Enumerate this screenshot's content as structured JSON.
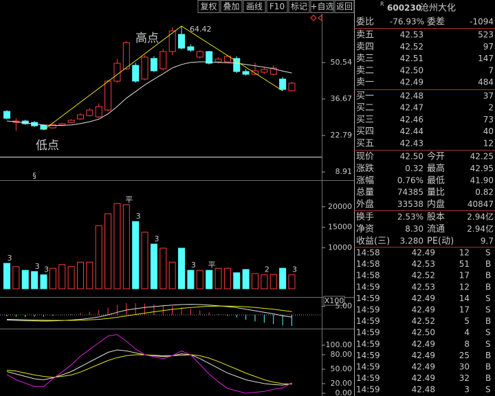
{
  "toolbar": {
    "buttons": [
      "复权",
      "叠加",
      "画线",
      "F10",
      "标记",
      "+自选",
      "返回"
    ]
  },
  "stock": {
    "flag": "R",
    "code": "600230",
    "name": "沧州大化"
  },
  "quote": {
    "ratio_label": "委比",
    "ratio": "-76.93%",
    "diff_label": "委差",
    "diff": "-1094",
    "color": "#30e030"
  },
  "order_book": {
    "price_color": "#ff4848",
    "volume_color": "#ffff00",
    "rows": [
      {
        "label": "卖五",
        "price": "42.53",
        "volume": "523"
      },
      {
        "label": "卖四",
        "price": "42.52",
        "volume": "97"
      },
      {
        "label": "卖三",
        "price": "42.51",
        "volume": "147"
      },
      {
        "label": "卖二",
        "price": "42.50",
        "volume": "7"
      },
      {
        "label": "卖一",
        "price": "42.49",
        "volume": "484"
      },
      {
        "label": "买一",
        "price": "42.48",
        "volume": "37"
      },
      {
        "label": "买二",
        "price": "42.47",
        "volume": "2"
      },
      {
        "label": "买三",
        "price": "42.46",
        "volume": "73"
      },
      {
        "label": "买四",
        "price": "42.44",
        "volume": "40"
      },
      {
        "label": "买五",
        "price": "42.43",
        "volume": "12"
      }
    ]
  },
  "stats": [
    {
      "label": "现价",
      "value": "42.50",
      "color": "#ff4848"
    },
    {
      "label": "今开",
      "value": "42.25",
      "color": "#ff4848"
    },
    {
      "label": "涨跌",
      "value": "0.32",
      "color": "#ff4848"
    },
    {
      "label": "最高",
      "value": "42.95",
      "color": "#ff4848"
    },
    {
      "label": "涨幅",
      "value": "0.76%",
      "color": "#ff4848"
    },
    {
      "label": "最低",
      "value": "41.90",
      "color": "#ff4848"
    },
    {
      "label": "总量",
      "value": "74385",
      "color": "#ffff00"
    },
    {
      "label": "量比",
      "value": "0.82",
      "color": "#ffff00"
    },
    {
      "label": "外盘",
      "value": "33538",
      "color": "#ff4848"
    },
    {
      "label": "内盘",
      "value": "40847",
      "color": "#30e030"
    },
    {
      "label": "换手",
      "value": "2.53%",
      "color": "#e8e8e8"
    },
    {
      "label": "股本",
      "value": "2.94亿",
      "color": "#e8e8e8"
    },
    {
      "label": "净资",
      "value": "8.30",
      "color": "#e8e8e8"
    },
    {
      "label": "流通",
      "value": "2.94亿",
      "color": "#e8e8e8"
    },
    {
      "label": "收益(三)",
      "value": "3.280",
      "color": "#e8e8e8"
    },
    {
      "label": "PE(动)",
      "value": "9.7",
      "color": "#e8e8e8"
    }
  ],
  "trades": {
    "price_color": "#ff4848",
    "volume_color": "#ffff00",
    "side_colors": {
      "B": "#ff4848",
      "S": "#30e030"
    },
    "rows": [
      {
        "time": "14:58",
        "price": "42.49",
        "volume": "12",
        "side": "S"
      },
      {
        "time": "14:58",
        "price": "42.53",
        "volume": "51",
        "side": "B"
      },
      {
        "time": "14:58",
        "price": "42.52",
        "volume": "17",
        "side": "B"
      },
      {
        "time": "14:59",
        "price": "42.53",
        "volume": "12",
        "side": "B"
      },
      {
        "time": "14:59",
        "price": "42.49",
        "volume": "14",
        "side": "S"
      },
      {
        "time": "14:59",
        "price": "42.49",
        "volume": "17",
        "side": "S"
      },
      {
        "time": "14:59",
        "price": "42.52",
        "volume": "5",
        "side": "B"
      },
      {
        "time": "14:59",
        "price": "42.50",
        "volume": "4",
        "side": "S"
      },
      {
        "time": "14:59",
        "price": "42.49",
        "volume": "8",
        "side": "S"
      },
      {
        "time": "14:59",
        "price": "42.49",
        "volume": "25",
        "side": "B"
      },
      {
        "time": "14:59",
        "price": "42.49",
        "volume": "30",
        "side": "B"
      },
      {
        "time": "14:59",
        "price": "42.49",
        "volume": "32",
        "side": "B"
      },
      {
        "time": "14:59",
        "price": "42.48",
        "volume": "3",
        "side": "S"
      }
    ]
  },
  "chart_data": [
    {
      "type": "candlestick",
      "up_color": "#ff3c3c",
      "down_color": "#54ffff",
      "ma_color": "#e0e0e0",
      "trend_color": "#e8e800",
      "open": [
        31.96,
        27.77,
        28.3,
        27.77,
        26.73,
        25.68,
        26.73,
        27.77,
        29.08,
        30.39,
        29.87,
        32.48,
        43.47,
        48.18,
        49.49,
        44.26,
        52.11,
        48.18,
        54.73,
        61.27,
        56.56,
        52.63,
        54.73,
        50.8,
        50.8,
        52.11,
        47.14,
        46.09,
        46.88,
        46.09,
        44.26,
        39.81
      ],
      "close": [
        29.34,
        28.3,
        27.25,
        26.46,
        25.16,
        26.99,
        27.25,
        28.56,
        30.65,
        32.48,
        33.79,
        43.47,
        50.28,
        58.13,
        43.47,
        52.63,
        47.4,
        54.73,
        62.58,
        56.04,
        55.25,
        54.73,
        50.28,
        51.85,
        52.9,
        47.14,
        46.09,
        47.4,
        47.92,
        48.45,
        40.33,
        42.69
      ],
      "high": [
        32.5,
        29.3,
        28.8,
        28.3,
        27.0,
        27.3,
        27.6,
        29.0,
        31.2,
        33.2,
        35.0,
        44.0,
        51.9,
        58.7,
        50.5,
        53.4,
        53.0,
        55.8,
        64.0,
        64.42,
        57.5,
        55.3,
        55.0,
        52.6,
        53.5,
        52.9,
        48.0,
        50.5,
        48.6,
        49.5,
        45.0,
        43.2
      ],
      "low": [
        28.9,
        24.63,
        26.9,
        26.0,
        24.9,
        25.4,
        26.4,
        27.5,
        28.8,
        30.0,
        29.5,
        32.0,
        42.9,
        47.8,
        42.9,
        43.8,
        46.9,
        47.6,
        53.4,
        55.5,
        54.6,
        52.0,
        49.8,
        50.2,
        50.3,
        46.6,
        45.6,
        45.8,
        46.2,
        45.7,
        39.8,
        39.5
      ],
      "ma": [
        28.3,
        28.0,
        27.6,
        27.2,
        26.8,
        26.6,
        26.6,
        26.8,
        27.3,
        28.0,
        29.0,
        31.0,
        33.8,
        37.0,
        39.5,
        42.0,
        44.2,
        46.3,
        48.5,
        49.8,
        50.6,
        50.8,
        50.8,
        50.6,
        50.5,
        50.3,
        49.8,
        49.3,
        48.8,
        48.2,
        47.3,
        46.6
      ],
      "trend_line": [
        {
          "index": 4,
          "value": 24.9
        },
        {
          "index": 19,
          "value": 64.42
        },
        {
          "index": 30,
          "value": 39.8
        }
      ],
      "peak_index": 19,
      "high_text": "高点",
      "low_text": "低点",
      "markers": [
        {
          "text": "§",
          "index": 3,
          "color": "#ff3c3c"
        }
      ],
      "ylim": [
        6.84,
        68.6
      ],
      "yticks": [
        50.54,
        36.67,
        22.79,
        8.91
      ]
    },
    {
      "type": "volume",
      "unit_label": "X100",
      "values": [
        6200,
        5400,
        4500,
        4200,
        3400,
        5000,
        5900,
        5400,
        6500,
        6500,
        15400,
        18300,
        20800,
        20500,
        16400,
        13800,
        10900,
        9900,
        6500,
        9900,
        4500,
        4500,
        4500,
        5000,
        5000,
        3900,
        4700,
        3700,
        3400,
        3500,
        5000,
        3400
      ],
      "markers": [
        {
          "text": "3",
          "index": 0,
          "color": "#30e030"
        },
        {
          "text": "3",
          "index": 3,
          "color": "#30e030"
        },
        {
          "text": "3",
          "index": 4,
          "color": "#30e030"
        },
        {
          "text": "3",
          "index": 14,
          "color": "#30e030"
        },
        {
          "text": "3",
          "index": 16,
          "color": "#30e030"
        },
        {
          "text": "3",
          "index": 20,
          "color": "#30e030"
        },
        {
          "text": "3",
          "index": 31,
          "color": "#30e030"
        },
        {
          "text": "2",
          "index": 28,
          "color": "#e8e800"
        },
        {
          "text": "平",
          "index": 13,
          "color": "#ff3c3c"
        },
        {
          "text": "平",
          "index": 22,
          "color": "#ff3c3c"
        }
      ],
      "ylim": [
        0,
        26000
      ],
      "yticks": [
        20000,
        15000,
        10000
      ]
    },
    {
      "type": "macd",
      "dif_color": "#e0e0e0",
      "dea_color": "#e8e800",
      "dif": [
        -3.0,
        -3.2,
        -3.4,
        -3.5,
        -3.6,
        -3.5,
        -3.3,
        -3.0,
        -2.6,
        -2.0,
        -1.2,
        0.0,
        1.5,
        2.8,
        3.6,
        4.3,
        4.8,
        5.3,
        5.7,
        6.0,
        6.1,
        6.0,
        5.7,
        5.3,
        4.8,
        4.2,
        3.3,
        2.4,
        1.5,
        0.6,
        -0.5,
        -1.3
      ],
      "dea": [
        -2.6,
        -2.7,
        -2.8,
        -3.0,
        -3.1,
        -3.2,
        -3.2,
        -3.2,
        -3.1,
        -2.9,
        -2.6,
        -2.1,
        -1.4,
        -0.6,
        0.2,
        1.0,
        1.8,
        2.5,
        3.2,
        3.8,
        4.3,
        4.7,
        5.0,
        5.1,
        5.1,
        5.0,
        4.7,
        4.3,
        3.8,
        3.3,
        2.6,
        1.9
      ],
      "macd": [
        -0.8,
        -1.0,
        -1.2,
        -1.0,
        -1.0,
        -0.6,
        -0.2,
        0.4,
        1.0,
        1.8,
        2.8,
        4.2,
        5.8,
        6.8,
        6.8,
        6.6,
        6.0,
        5.6,
        5.0,
        4.4,
        3.6,
        2.6,
        1.4,
        0.4,
        -0.6,
        -1.6,
        -2.8,
        -3.8,
        -4.6,
        -5.4,
        -6.2,
        -6.4
      ],
      "ylim": [
        -8,
        10
      ],
      "yticks": [
        {
          "value": 5,
          "label": "5.00"
        }
      ]
    },
    {
      "type": "kdj",
      "k_color": "#e0e0e0",
      "d_color": "#e8e800",
      "j_color": "#e020e0",
      "k": [
        45,
        40,
        35,
        30,
        28,
        32,
        38,
        45,
        55,
        65,
        75,
        85,
        90,
        88,
        84,
        80,
        78,
        76,
        78,
        82,
        80,
        72,
        62,
        52,
        42,
        35,
        28,
        24,
        20,
        18,
        17,
        20
      ],
      "d": [
        48,
        46,
        42,
        38,
        35,
        33,
        35,
        38,
        44,
        52,
        60,
        68,
        74,
        78,
        80,
        80,
        79,
        78,
        78,
        79,
        80,
        78,
        73,
        66,
        58,
        50,
        42,
        35,
        28,
        23,
        20,
        19
      ],
      "j": [
        39,
        28,
        21,
        14,
        14,
        30,
        44,
        59,
        77,
        91,
        105,
        119,
        122,
        108,
        92,
        80,
        76,
        72,
        78,
        88,
        80,
        60,
        40,
        24,
        10,
        5,
        0,
        2,
        4,
        8,
        11,
        22
      ],
      "ylim": [
        -5.7,
        131.4
      ],
      "yticks": [
        {
          "value": 100,
          "label": "100.00"
        },
        {
          "value": 80,
          "label": "80.00"
        },
        {
          "value": 50,
          "label": "50.00"
        },
        {
          "value": 20,
          "label": "20.00"
        },
        {
          "value": 0,
          "label": "0.00"
        }
      ]
    }
  ]
}
